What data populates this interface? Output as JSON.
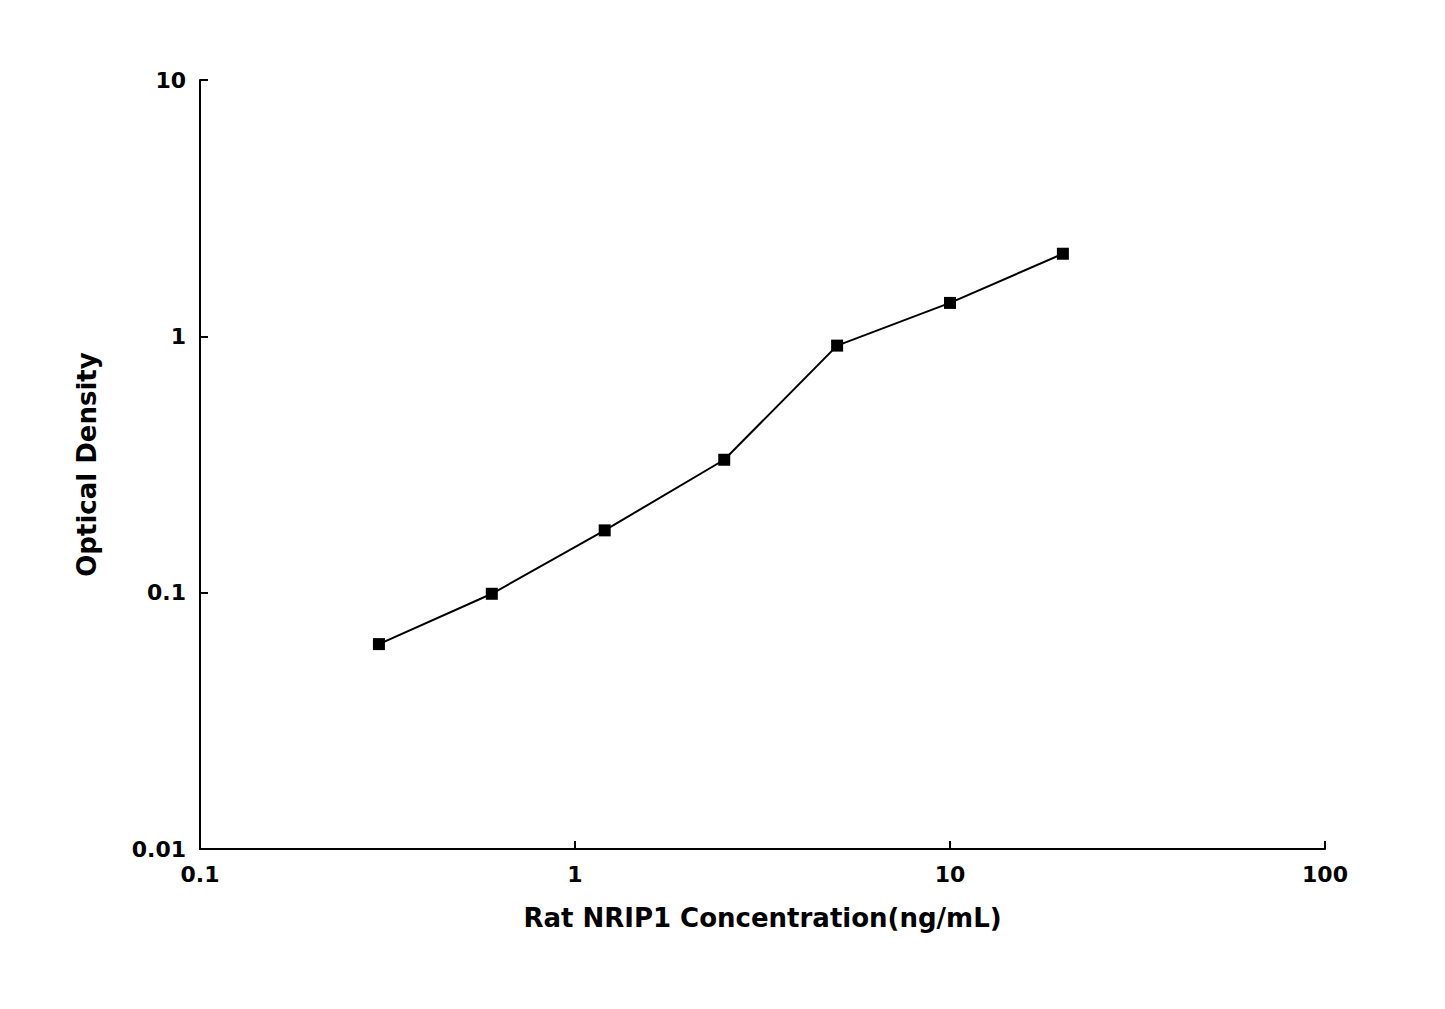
{
  "chart_data": {
    "type": "line",
    "x": [
      0.3,
      0.6,
      1.2,
      2.5,
      5.0,
      10.0,
      20.0
    ],
    "values": [
      0.063,
      0.099,
      0.175,
      0.33,
      0.92,
      1.35,
      2.1
    ],
    "xlabel": "Rat NRIP1 Concentration(ng/mL)",
    "ylabel": "Optical Density",
    "xlim": [
      0.1,
      100
    ],
    "ylim": [
      0.01,
      10
    ],
    "xticks": [
      0.1,
      1,
      10,
      100
    ],
    "yticks": [
      0.01,
      0.1,
      1,
      10
    ],
    "log": true,
    "color": "#000000",
    "marker": "square",
    "grid": false
  }
}
